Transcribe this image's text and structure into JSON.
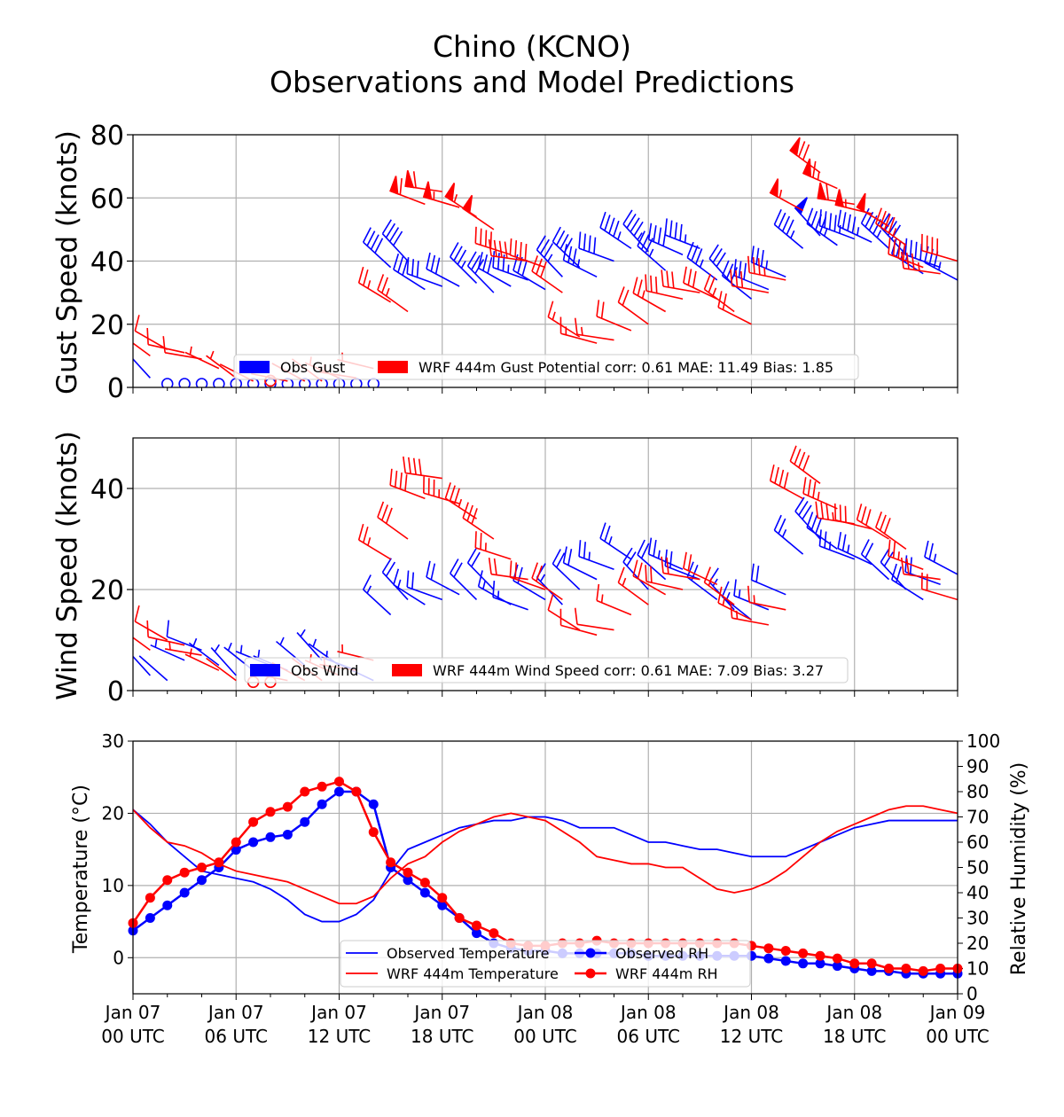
{
  "title_line1": "Chino (KCNO)",
  "title_line2": "Observations and Model Predictions",
  "colors": {
    "obs": "#0000ff",
    "model": "#ff0000"
  },
  "chart_data": [
    {
      "type": "wind-barbs",
      "ylabel": "Gust Speed (knots)",
      "ylim": [
        0,
        80
      ],
      "yticks": [
        0,
        20,
        40,
        60,
        80
      ],
      "xlim_hours": [
        0,
        48
      ],
      "grid": true,
      "legend": {
        "placement": "lower-center",
        "entries": [
          "Obs Gust",
          "WRF 444m Gust Potential corr: 0.61 MAE: 11.49 Bias: 1.85"
        ]
      },
      "series": [
        {
          "name": "Obs Gust",
          "color": "#0000ff",
          "hours": [
            0,
            1,
            2,
            3,
            4,
            5,
            6,
            7,
            8,
            9,
            10,
            11,
            12,
            13,
            14,
            15,
            16,
            17,
            18,
            19,
            20,
            21,
            22,
            23,
            24,
            25,
            26,
            27,
            28,
            29,
            30,
            31,
            32,
            33,
            34,
            35,
            36,
            37,
            38,
            39,
            40,
            41,
            42,
            43,
            44,
            45,
            46,
            47,
            48
          ],
          "values": [
            5,
            3,
            0,
            0,
            0,
            0,
            0,
            0,
            0,
            0,
            0,
            0,
            0,
            0,
            0,
            38,
            40,
            31,
            32,
            32,
            33,
            30,
            32,
            34,
            31,
            35,
            38,
            35,
            40,
            44,
            43,
            37,
            42,
            44,
            34,
            32,
            28,
            31,
            35,
            44,
            48,
            45,
            47,
            46,
            44,
            42,
            36,
            38,
            34
          ]
        },
        {
          "name": "WRF 444m Gust Potential",
          "color": "#ff0000",
          "hours": [
            0,
            1,
            2,
            3,
            4,
            5,
            6,
            7,
            8,
            9,
            10,
            11,
            12,
            13,
            14,
            15,
            16,
            17,
            18,
            19,
            20,
            21,
            22,
            23,
            24,
            25,
            26,
            27,
            28,
            29,
            30,
            31,
            32,
            33,
            34,
            35,
            36,
            37,
            38,
            39,
            40,
            41,
            42,
            43,
            44,
            45,
            46,
            47,
            48
          ],
          "values": [
            6,
            10,
            12,
            11,
            9,
            6,
            3,
            2,
            1,
            2,
            2,
            2,
            3,
            3,
            6,
            27,
            24,
            58,
            62,
            57,
            54,
            50,
            42,
            40,
            38,
            30,
            16,
            14,
            15,
            18,
            20,
            24,
            28,
            30,
            28,
            24,
            20,
            30,
            34,
            56,
            68,
            63,
            58,
            55,
            51,
            45,
            38,
            36,
            40
          ]
        }
      ]
    },
    {
      "type": "wind-barbs",
      "ylabel": "Wind Speed (knots)",
      "ylim": [
        0,
        50
      ],
      "yticks": [
        0,
        20,
        40
      ],
      "xlim_hours": [
        0,
        48
      ],
      "grid": true,
      "legend": {
        "placement": "lower-center",
        "entries": [
          "Obs Wind",
          "WRF 444m Wind Speed corr: 0.61 MAE: 7.09 Bias: 3.27"
        ]
      },
      "series": [
        {
          "name": "Obs Wind",
          "color": "#0000ff",
          "hours": [
            0,
            1,
            2,
            3,
            4,
            5,
            6,
            7,
            8,
            9,
            10,
            11,
            12,
            13,
            14,
            15,
            16,
            17,
            18,
            19,
            20,
            21,
            22,
            23,
            24,
            25,
            26,
            27,
            28,
            29,
            30,
            31,
            32,
            33,
            34,
            35,
            36,
            37,
            38,
            39,
            40,
            41,
            42,
            43,
            44,
            45,
            46,
            47,
            48
          ],
          "values": [
            4,
            3,
            2,
            6,
            8,
            5,
            3,
            4,
            5,
            4,
            5,
            6,
            5,
            4,
            2,
            15,
            18,
            17,
            18,
            19,
            18,
            20,
            17,
            16,
            18,
            17,
            20,
            22,
            24,
            26,
            20,
            22,
            24,
            22,
            18,
            16,
            14,
            16,
            19,
            27,
            30,
            28,
            26,
            25,
            22,
            20,
            18,
            21,
            23
          ]
        },
        {
          "name": "WRF 444m Wind Speed",
          "color": "#ff0000",
          "hours": [
            0,
            1,
            2,
            3,
            4,
            5,
            6,
            7,
            8,
            9,
            10,
            11,
            12,
            13,
            14,
            15,
            16,
            17,
            18,
            19,
            20,
            21,
            22,
            23,
            24,
            25,
            26,
            27,
            28,
            29,
            30,
            31,
            32,
            33,
            34,
            35,
            36,
            37,
            38,
            39,
            40,
            41,
            42,
            43,
            44,
            45,
            46,
            47,
            48
          ],
          "values": [
            5,
            8,
            10,
            9,
            7,
            4,
            2,
            1,
            1,
            2,
            2,
            2,
            3,
            4,
            6,
            26,
            30,
            38,
            42,
            37,
            34,
            30,
            26,
            22,
            20,
            18,
            12,
            11,
            12,
            15,
            17,
            19,
            20,
            22,
            21,
            17,
            14,
            13,
            16,
            38,
            41,
            36,
            33,
            32,
            30,
            28,
            24,
            22,
            18
          ]
        }
      ]
    },
    {
      "type": "line",
      "ylabel": "Temperature (°C)",
      "ylabel_right": "Relative Humidity (%)",
      "ylim": [
        -5,
        30
      ],
      "yticks": [
        0,
        10,
        20,
        30
      ],
      "ylim_right": [
        0,
        100
      ],
      "yticks_right": [
        0,
        10,
        20,
        30,
        40,
        50,
        60,
        70,
        80,
        90,
        100
      ],
      "xlim_hours": [
        0,
        48
      ],
      "xtick_hours": [
        0,
        6,
        12,
        18,
        24,
        30,
        36,
        42,
        48
      ],
      "xtick_labels": [
        [
          "Jan 07",
          "00 UTC"
        ],
        [
          "Jan 07",
          "06 UTC"
        ],
        [
          "Jan 07",
          "12 UTC"
        ],
        [
          "Jan 07",
          "18 UTC"
        ],
        [
          "Jan 08",
          "00 UTC"
        ],
        [
          "Jan 08",
          "06 UTC"
        ],
        [
          "Jan 08",
          "12 UTC"
        ],
        [
          "Jan 08",
          "18 UTC"
        ],
        [
          "Jan 09",
          "00 UTC"
        ]
      ],
      "grid": true,
      "legend": {
        "placement": "lower-center",
        "entries": [
          "Observed Temperature",
          "Observed RH",
          "WRF 444m Temperature",
          "WRF 444m RH"
        ]
      },
      "x": [
        0,
        1,
        2,
        3,
        4,
        5,
        6,
        7,
        8,
        9,
        10,
        11,
        12,
        13,
        14,
        15,
        16,
        17,
        18,
        19,
        20,
        21,
        22,
        23,
        24,
        25,
        26,
        27,
        28,
        29,
        30,
        31,
        32,
        33,
        34,
        35,
        36,
        37,
        38,
        39,
        40,
        41,
        42,
        43,
        44,
        45,
        46,
        47,
        48
      ],
      "series": [
        {
          "name": "Observed Temperature",
          "axis": "left",
          "color": "#0000ff",
          "style": "line",
          "values": [
            20.5,
            18.5,
            16,
            14,
            12,
            11.5,
            11,
            10.5,
            9.5,
            8,
            6,
            5,
            5,
            6,
            8,
            12,
            15,
            16,
            17,
            18,
            18.5,
            19,
            19,
            19.5,
            19.5,
            19,
            18,
            18,
            18,
            17,
            16,
            16,
            15.5,
            15,
            15,
            14.5,
            14,
            14,
            14,
            15,
            16,
            17,
            18,
            18.5,
            19,
            19,
            19,
            19,
            19
          ]
        },
        {
          "name": "Observed RH",
          "axis": "right",
          "color": "#0000ff",
          "style": "line-markers",
          "values": [
            25,
            30,
            35,
            40,
            45,
            50,
            57,
            60,
            62,
            63,
            68,
            75,
            80,
            80,
            75,
            50,
            45,
            40,
            35,
            30,
            24,
            20,
            18,
            17,
            17,
            16,
            16,
            16,
            16,
            16,
            15,
            15,
            15,
            15,
            15,
            15,
            15,
            14,
            13,
            12,
            12,
            11,
            10,
            9,
            9,
            8,
            8,
            8,
            8
          ]
        },
        {
          "name": "WRF 444m Temperature",
          "axis": "left",
          "color": "#ff0000",
          "style": "line",
          "values": [
            20.5,
            18,
            16,
            15.5,
            14.5,
            13,
            12,
            11.5,
            11,
            10.5,
            9.5,
            8.5,
            7.5,
            7.5,
            8.5,
            11,
            13,
            14,
            16,
            17.5,
            18.5,
            19.5,
            20,
            19.5,
            19,
            17.5,
            16,
            14,
            13.5,
            13,
            13,
            12.5,
            12.5,
            11,
            9.5,
            9,
            9.5,
            10.5,
            12,
            14,
            16,
            17.5,
            18.5,
            19.5,
            20.5,
            21,
            21,
            20.5,
            20
          ]
        },
        {
          "name": "WRF 444m RH",
          "axis": "right",
          "color": "#ff0000",
          "style": "line-markers",
          "values": [
            28,
            38,
            45,
            48,
            50,
            52,
            60,
            68,
            72,
            74,
            80,
            82,
            84,
            80,
            64,
            52,
            48,
            44,
            38,
            30,
            27,
            24,
            20,
            19,
            19,
            20,
            20,
            21,
            20,
            20,
            20,
            20,
            20,
            20,
            20,
            20,
            19,
            18,
            17,
            16,
            15,
            14,
            12,
            12,
            10,
            10,
            9,
            10,
            10
          ]
        }
      ]
    }
  ]
}
